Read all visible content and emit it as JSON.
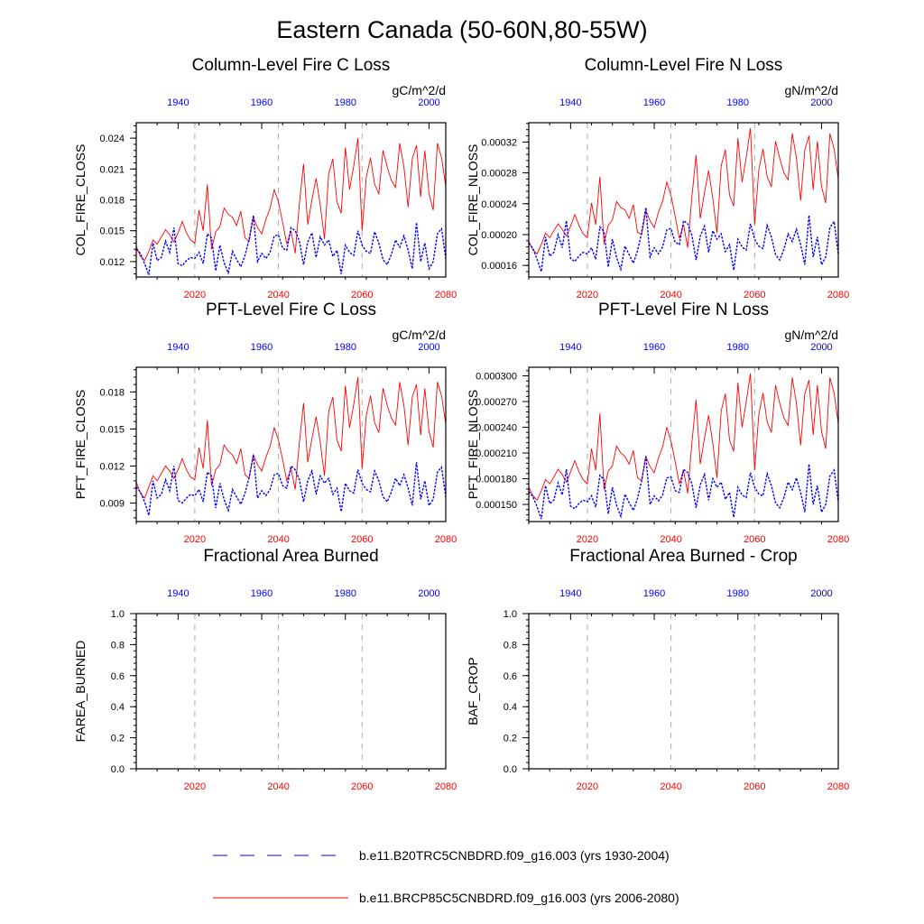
{
  "figure": {
    "title": "Eastern Canada (50-60N,80-55W)",
    "colors": {
      "future": "#ff0000",
      "historical": "#0000ff",
      "axis": "#000000",
      "ref": "#aaaaaa"
    },
    "legend": [
      {
        "label": "b.e11.B20TRC5CNBDRD.f09_g16.003 (yrs 1930-2004)",
        "style": "dashed",
        "color": "#0000ff"
      },
      {
        "label": "b.e11.BRCP85C5CNBDRD.f09_g16.003 (yrs 2006-2080)",
        "style": "solid",
        "color": "#ff0000"
      }
    ]
  },
  "chart_data": [
    {
      "type": "line",
      "title": "Column-Level Fire C Loss",
      "ylabel": "COL_FIRE_CLOSS",
      "units": "gC/m^2/d",
      "xlim_future": [
        2006,
        2080
      ],
      "xlim_hist": [
        1930,
        2004
      ],
      "ylim": [
        0.0105,
        0.0255
      ],
      "yticks": [
        0.012,
        0.015,
        0.018,
        0.021,
        0.024
      ],
      "ytick_labels": [
        "0.012",
        "0.015",
        "0.018",
        "0.021",
        "0.024"
      ],
      "xticks_future": [
        2020,
        2040,
        2060,
        2080
      ],
      "xticks_hist": [
        1940,
        1960,
        1980,
        2000
      ],
      "series": [
        {
          "name": "future",
          "values": [
            0.0135,
            0.0125,
            0.0121,
            0.013,
            0.0141,
            0.0137,
            0.0144,
            0.0151,
            0.0146,
            0.0139,
            0.0148,
            0.0159,
            0.0148,
            0.0141,
            0.0138,
            0.017,
            0.015,
            0.0195,
            0.0132,
            0.0149,
            0.0154,
            0.0172,
            0.0166,
            0.0163,
            0.0155,
            0.0169,
            0.0143,
            0.014,
            0.0163,
            0.0153,
            0.0147,
            0.0161,
            0.0172,
            0.019,
            0.0178,
            0.0158,
            0.0137,
            0.015,
            0.0128,
            0.0176,
            0.0215,
            0.0156,
            0.018,
            0.0201,
            0.0175,
            0.0142,
            0.0205,
            0.022,
            0.0178,
            0.0167,
            0.0231,
            0.019,
            0.0213,
            0.024,
            0.015,
            0.0202,
            0.0221,
            0.0195,
            0.0186,
            0.0228,
            0.0212,
            0.0199,
            0.0192,
            0.0235,
            0.0212,
            0.0173,
            0.022,
            0.0233,
            0.0183,
            0.0228,
            0.0186,
            0.017,
            0.0235,
            0.0221,
            0.0193
          ]
        },
        {
          "name": "historical",
          "values": [
            0.0132,
            0.0128,
            0.0118,
            0.0107,
            0.0138,
            0.0121,
            0.0124,
            0.014,
            0.0129,
            0.0153,
            0.0118,
            0.0116,
            0.0121,
            0.0124,
            0.0123,
            0.0129,
            0.0118,
            0.0147,
            0.0143,
            0.0111,
            0.0136,
            0.0119,
            0.0109,
            0.013,
            0.0122,
            0.0115,
            0.0126,
            0.0142,
            0.0165,
            0.012,
            0.0128,
            0.0123,
            0.0129,
            0.0145,
            0.0146,
            0.0133,
            0.0131,
            0.0153,
            0.015,
            0.014,
            0.0117,
            0.0139,
            0.0148,
            0.0124,
            0.0144,
            0.0136,
            0.0141,
            0.0125,
            0.0131,
            0.0108,
            0.0136,
            0.0129,
            0.0126,
            0.015,
            0.0136,
            0.013,
            0.0128,
            0.0149,
            0.0138,
            0.0122,
            0.0117,
            0.0127,
            0.0141,
            0.0134,
            0.0145,
            0.0131,
            0.0113,
            0.0158,
            0.012,
            0.0138,
            0.0113,
            0.012,
            0.0147,
            0.0152,
            0.0123
          ]
        }
      ]
    },
    {
      "type": "line",
      "title": "Column-Level Fire N Loss",
      "ylabel": "COL_FIRE_NLOSS",
      "units": "gN/m^2/d",
      "xlim_future": [
        2006,
        2080
      ],
      "xlim_hist": [
        1930,
        2004
      ],
      "ylim": [
        0.000145,
        0.000345
      ],
      "yticks": [
        0.00016,
        0.0002,
        0.00024,
        0.00028,
        0.00032
      ],
      "ytick_labels": [
        "0.00016",
        "0.00020",
        "0.00024",
        "0.00028",
        "0.00032"
      ],
      "xticks_future": [
        2020,
        2040,
        2060,
        2080
      ],
      "xticks_hist": [
        1940,
        1960,
        1980,
        2000
      ],
      "series": [
        {
          "name": "future",
          "values": [
            0.000191,
            0.00018,
            0.000175,
            0.000187,
            0.000202,
            0.000196,
            0.000205,
            0.000214,
            0.000207,
            0.000198,
            0.000211,
            0.000226,
            0.000212,
            0.000201,
            0.000196,
            0.000241,
            0.000213,
            0.000275,
            0.000188,
            0.000212,
            0.000219,
            0.000243,
            0.000235,
            0.000232,
            0.000221,
            0.000239,
            0.000203,
            0.0002,
            0.000231,
            0.000218,
            0.000209,
            0.000229,
            0.000243,
            0.000268,
            0.000251,
            0.000224,
            0.000195,
            0.000213,
            0.000183,
            0.000249,
            0.000303,
            0.000221,
            0.000254,
            0.000283,
            0.000247,
            0.000202,
            0.000289,
            0.00031,
            0.000251,
            0.000237,
            0.000325,
            0.000268,
            0.0003,
            0.000338,
            0.000213,
            0.000284,
            0.000311,
            0.000275,
            0.000262,
            0.000321,
            0.000299,
            0.00028,
            0.000271,
            0.000331,
            0.000299,
            0.000244,
            0.00031,
            0.000328,
            0.000258,
            0.000321,
            0.000262,
            0.000241,
            0.000331,
            0.000311,
            0.000272
          ]
        },
        {
          "name": "historical",
          "values": [
            0.000189,
            0.000182,
            0.000168,
            0.000152,
            0.000197,
            0.000172,
            0.000177,
            0.0002,
            0.000183,
            0.000218,
            0.000169,
            0.000165,
            0.000172,
            0.000177,
            0.000175,
            0.000183,
            0.000168,
            0.00021,
            0.000204,
            0.000158,
            0.000194,
            0.00017,
            0.000155,
            0.000185,
            0.000174,
            0.000163,
            0.000179,
            0.000203,
            0.000235,
            0.000171,
            0.000183,
            0.000175,
            0.000184,
            0.000206,
            0.000208,
            0.00019,
            0.000187,
            0.000218,
            0.000214,
            0.000199,
            0.000167,
            0.000198,
            0.000211,
            0.000177,
            0.000205,
            0.000194,
            0.000201,
            0.000178,
            0.000187,
            0.000154,
            0.000194,
            0.000184,
            0.00018,
            0.000214,
            0.000194,
            0.000185,
            0.000182,
            0.000212,
            0.000197,
            0.000174,
            0.000167,
            0.000181,
            0.000201,
            0.000191,
            0.000207,
            0.000187,
            0.000161,
            0.000225,
            0.000171,
            0.000197,
            0.000161,
            0.000171,
            0.000209,
            0.000217,
            0.000175
          ]
        }
      ]
    },
    {
      "type": "line",
      "title": "PFT-Level Fire C Loss",
      "ylabel": "PFT_FIRE_CLOSS",
      "units": "gC/m^2/d",
      "xlim_future": [
        2006,
        2080
      ],
      "xlim_hist": [
        1930,
        2004
      ],
      "ylim": [
        0.0075,
        0.02
      ],
      "yticks": [
        0.009,
        0.012,
        0.015,
        0.018
      ],
      "ytick_labels": [
        "0.009",
        "0.012",
        "0.015",
        "0.018"
      ],
      "xticks_future": [
        2020,
        2040,
        2060,
        2080
      ],
      "xticks_hist": [
        1940,
        1960,
        1980,
        2000
      ],
      "series": [
        {
          "name": "future",
          "values": [
            0.0107,
            0.0098,
            0.0094,
            0.0103,
            0.0112,
            0.0108,
            0.0114,
            0.012,
            0.0116,
            0.011,
            0.0117,
            0.0126,
            0.0117,
            0.0111,
            0.0109,
            0.0135,
            0.0118,
            0.0157,
            0.0104,
            0.0117,
            0.0121,
            0.0137,
            0.0132,
            0.0129,
            0.0122,
            0.0134,
            0.0113,
            0.011,
            0.0129,
            0.0121,
            0.0116,
            0.0127,
            0.0136,
            0.0151,
            0.0141,
            0.0125,
            0.0108,
            0.0118,
            0.0101,
            0.0139,
            0.0171,
            0.0123,
            0.0142,
            0.016,
            0.0139,
            0.0112,
            0.0164,
            0.0176,
            0.0141,
            0.0132,
            0.0185,
            0.0151,
            0.017,
            0.0192,
            0.0118,
            0.0161,
            0.0177,
            0.0155,
            0.0147,
            0.0183,
            0.0169,
            0.0159,
            0.0153,
            0.0188,
            0.0169,
            0.0137,
            0.0176,
            0.0186,
            0.0145,
            0.0183,
            0.0148,
            0.0135,
            0.0188,
            0.0177,
            0.0154
          ]
        },
        {
          "name": "historical",
          "values": [
            0.0103,
            0.0099,
            0.0091,
            0.008,
            0.0108,
            0.0094,
            0.0097,
            0.0109,
            0.01,
            0.012,
            0.0092,
            0.009,
            0.0094,
            0.0097,
            0.0096,
            0.0101,
            0.0091,
            0.0115,
            0.0112,
            0.0086,
            0.0106,
            0.0093,
            0.0084,
            0.0101,
            0.0095,
            0.0089,
            0.0098,
            0.0111,
            0.0129,
            0.0094,
            0.01,
            0.0096,
            0.0101,
            0.0113,
            0.0114,
            0.0104,
            0.0102,
            0.012,
            0.0117,
            0.0109,
            0.0091,
            0.0108,
            0.0116,
            0.0097,
            0.0112,
            0.0106,
            0.011,
            0.0097,
            0.0102,
            0.0083,
            0.0106,
            0.01,
            0.0098,
            0.0117,
            0.0106,
            0.0101,
            0.0099,
            0.0116,
            0.0108,
            0.0095,
            0.0091,
            0.0099,
            0.011,
            0.0104,
            0.0113,
            0.0102,
            0.0088,
            0.0123,
            0.0093,
            0.0108,
            0.0088,
            0.0093,
            0.0115,
            0.0119,
            0.0095
          ]
        }
      ]
    },
    {
      "type": "line",
      "title": "PFT-Level Fire N Loss",
      "ylabel": "PFT_FIRE_NLOSS",
      "units": "gN/m^2/d",
      "xlim_future": [
        2006,
        2080
      ],
      "xlim_hist": [
        1930,
        2004
      ],
      "ylim": [
        0.00013,
        0.00031
      ],
      "yticks": [
        0.00015,
        0.00018,
        0.00021,
        0.00024,
        0.00027,
        0.0003
      ],
      "ytick_labels": [
        "0.000150",
        "0.000180",
        "0.000210",
        "0.000240",
        "0.000270",
        "0.000300"
      ],
      "xticks_future": [
        2020,
        2040,
        2060,
        2080
      ],
      "xticks_hist": [
        1940,
        1960,
        1980,
        2000
      ],
      "series": [
        {
          "name": "future",
          "values": [
            0.00017,
            0.00016,
            0.000155,
            0.000166,
            0.000179,
            0.000174,
            0.000182,
            0.000191,
            0.000185,
            0.000176,
            0.000188,
            0.000201,
            0.000188,
            0.000179,
            0.000174,
            0.000215,
            0.00019,
            0.000256,
            0.000167,
            0.000189,
            0.000195,
            0.000218,
            0.00021,
            0.000206,
            0.000197,
            0.000213,
            0.000181,
            0.000178,
            0.000206,
            0.000194,
            0.000187,
            0.000204,
            0.000217,
            0.00024,
            0.000224,
            0.0002,
            0.000174,
            0.00019,
            0.000163,
            0.000222,
            0.000272,
            0.000197,
            0.000227,
            0.000254,
            0.000221,
            0.000181,
            0.000259,
            0.000279,
            0.000225,
            0.000212,
            0.000292,
            0.00024,
            0.00027,
            0.000303,
            0.00019,
            0.000255,
            0.00028,
            0.000246,
            0.000234,
            0.000289,
            0.000268,
            0.000251,
            0.000242,
            0.000298,
            0.000268,
            0.000219,
            0.000279,
            0.000295,
            0.000231,
            0.000289,
            0.000235,
            0.000215,
            0.000298,
            0.00028,
            0.000244
          ]
        },
        {
          "name": "historical",
          "values": [
            0.000165,
            0.000159,
            0.000147,
            0.000133,
            0.000172,
            0.000151,
            0.000155,
            0.000175,
            0.000161,
            0.000191,
            0.000148,
            0.000145,
            0.000151,
            0.000155,
            0.000153,
            0.00016,
            0.000147,
            0.000184,
            0.000179,
            0.000139,
            0.00017,
            0.000149,
            0.000136,
            0.000162,
            0.000152,
            0.000143,
            0.000157,
            0.000178,
            0.000206,
            0.00015,
            0.00016,
            0.000154,
            0.000161,
            0.000181,
            0.000182,
            0.000166,
            0.000164,
            0.000191,
            0.000187,
            0.000174,
            0.000146,
            0.000173,
            0.000185,
            0.000155,
            0.00018,
            0.00017,
            0.000176,
            0.000156,
            0.000164,
            0.000135,
            0.00017,
            0.000161,
            0.000158,
            0.000187,
            0.00017,
            0.000162,
            0.00016,
            0.000186,
            0.000172,
            0.000152,
            0.000146,
            0.000158,
            0.000176,
            0.000167,
            0.000181,
            0.000164,
            0.000141,
            0.000197,
            0.00015,
            0.000172,
            0.000141,
            0.00015,
            0.000183,
            0.00019,
            0.000153
          ]
        }
      ]
    },
    {
      "type": "line",
      "title": "Fractional Area Burned",
      "ylabel": "FAREA_BURNED",
      "units": "",
      "xlim_future": [
        2006,
        2080
      ],
      "xlim_hist": [
        1930,
        2004
      ],
      "ylim": [
        0.0,
        1.0
      ],
      "yticks": [
        0.0,
        0.2,
        0.4,
        0.6,
        0.8,
        1.0
      ],
      "ytick_labels": [
        "0.0",
        "0.2",
        "0.4",
        "0.6",
        "0.8",
        "1.0"
      ],
      "xticks_future": [
        2020,
        2040,
        2060,
        2080
      ],
      "xticks_hist": [
        1940,
        1960,
        1980,
        2000
      ],
      "series": []
    },
    {
      "type": "line",
      "title": "Fractional Area Burned - Crop",
      "ylabel": "BAF_CROP",
      "units": "",
      "xlim_future": [
        2006,
        2080
      ],
      "xlim_hist": [
        1930,
        2004
      ],
      "ylim": [
        0.0,
        1.0
      ],
      "yticks": [
        0.0,
        0.2,
        0.4,
        0.6,
        0.8,
        1.0
      ],
      "ytick_labels": [
        "0.0",
        "0.2",
        "0.4",
        "0.6",
        "0.8",
        "1.0"
      ],
      "xticks_future": [
        2020,
        2040,
        2060,
        2080
      ],
      "xticks_hist": [
        1940,
        1960,
        1980,
        2000
      ],
      "series": []
    }
  ]
}
